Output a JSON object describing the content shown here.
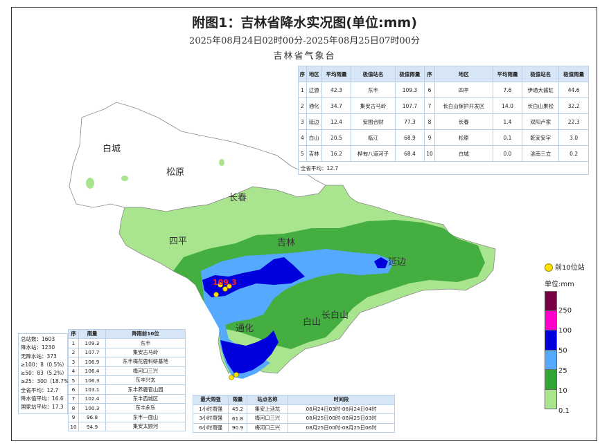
{
  "title": "附图1：吉林省降水实况图(单位:mm)",
  "period": "2025年08月24日02时00分-2025年08月25日07时00分",
  "agency": "吉林省气象台",
  "map": {
    "cities": [
      "白城",
      "松原",
      "长春",
      "四平",
      "吉林",
      "延边",
      "通化",
      "白山",
      "长白山"
    ],
    "max_label": "109.3"
  },
  "region_table": {
    "headers": [
      "序",
      "地区",
      "平均雨量",
      "极值站名",
      "极值雨量",
      "序",
      "地区",
      "平均雨量",
      "极值站名",
      "极值雨量"
    ],
    "rows": [
      [
        "1",
        "辽源",
        "42.3",
        "东丰",
        "109.3",
        "6",
        "四平",
        "7.6",
        "伊通大酱缸",
        "44.6"
      ],
      [
        "2",
        "通化",
        "34.7",
        "集安古马岭",
        "107.7",
        "7",
        "长白山保护开发区",
        "14.0",
        "长白山果松",
        "32.2"
      ],
      [
        "3",
        "延边",
        "12.4",
        "安图合财",
        "77.3",
        "8",
        "长春",
        "1.4",
        "双阳卢家",
        "22.3"
      ],
      [
        "4",
        "白山",
        "20.5",
        "临江",
        "68.9",
        "9",
        "松原",
        "0.1",
        "乾安安字",
        "3.0"
      ],
      [
        "5",
        "吉林",
        "16.2",
        "桦甸八道河子",
        "68.4",
        "10",
        "白城",
        "0.0",
        "洮南三立",
        "0.2"
      ]
    ],
    "province_avg": "全省平均：12.7"
  },
  "stats": [
    "总站数：1603",
    "降水站：1230",
    "无降水站：373",
    "≥100：8（0.5%）",
    "≥50：83（5.2%）",
    "≥25：300（18.7%",
    "全省平均：12.7",
    "降水值平均：16.6",
    "国家站平均：17.3"
  ],
  "top10": {
    "headers": [
      "序",
      "雨量",
      "降雨前10位"
    ],
    "rows": [
      [
        "1",
        "109.3",
        "东丰"
      ],
      [
        "2",
        "107.7",
        "集安古马岭"
      ],
      [
        "3",
        "106.9",
        "东丰梅花鹿科研基地"
      ],
      [
        "4",
        "106.4",
        "梅河口三兴"
      ],
      [
        "5",
        "106.3",
        "东丰兴太"
      ],
      [
        "6",
        "103.1",
        "东丰养鹿官山园"
      ],
      [
        "7",
        "102.4",
        "东丰西城区"
      ],
      [
        "8",
        "100.3",
        "东丰永乐"
      ],
      [
        "9",
        "96.8",
        "东丰一面山"
      ],
      [
        "10",
        "94.9",
        "集安太顾河"
      ]
    ]
  },
  "max_table": {
    "headers": [
      "最大雨强",
      "雨量",
      "站点名称",
      "时间段"
    ],
    "rows": [
      [
        "1小时雨强",
        "45.2",
        "集安上活龙",
        "08月24日03时-08月24日04时"
      ],
      [
        "3小时雨强",
        "61.8",
        "梅河口三兴",
        "08月25日00时-08月25日03时"
      ],
      [
        "6小时雨强",
        "90.9",
        "梅河口三兴",
        "08月25日00时-08月25日06时"
      ]
    ]
  },
  "legend": {
    "top10_label": "前10位站",
    "unit": "单位:mm",
    "levels": [
      "250",
      "100",
      "50",
      "25",
      "10",
      "0.1"
    ],
    "colors": [
      "#7a0044",
      "#ff00cc",
      "#0000dd",
      "#55aaff",
      "#33a533",
      "#a9e58f"
    ]
  }
}
